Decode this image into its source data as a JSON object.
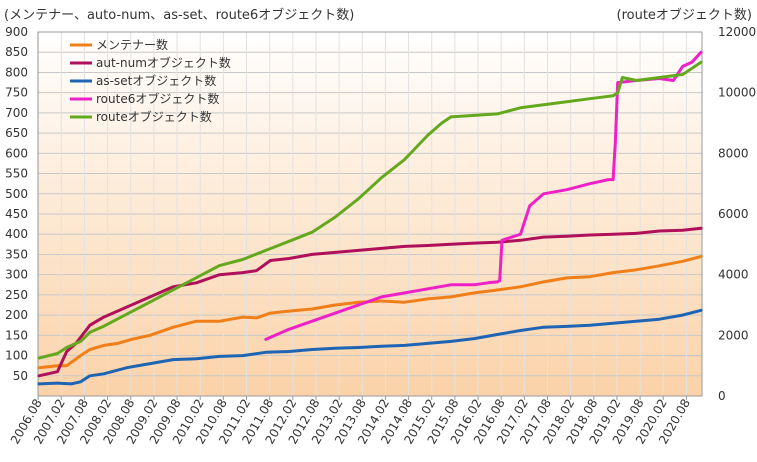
{
  "chart_data": {
    "type": "line",
    "left_axis_title": "(メンテナー、auto-num、as-set、route6オブジェクト数)",
    "right_axis_title": "(routeオブジェクト数)",
    "y_left": {
      "min": 0,
      "max": 900,
      "ticks": [
        50,
        100,
        150,
        200,
        250,
        300,
        350,
        400,
        450,
        500,
        550,
        600,
        650,
        700,
        750,
        800,
        850,
        900
      ]
    },
    "y_right": {
      "min": 0,
      "max": 12000,
      "ticks": [
        0,
        2000,
        4000,
        6000,
        8000,
        10000,
        12000
      ]
    },
    "x_range": [
      2006.58,
      2020.92
    ],
    "x_ticks": [
      "2006.08",
      "2007.02",
      "2007.08",
      "2008.02",
      "2008.08",
      "2009.02",
      "2009.08",
      "2010.02",
      "2010.08",
      "2011.02",
      "2011.08",
      "2012.02",
      "2012.08",
      "2013.02",
      "2013.08",
      "2014.02",
      "2014.08",
      "2015.02",
      "2015.08",
      "2016.02",
      "2016.08",
      "2017.02",
      "2017.08",
      "2018.02",
      "2018.08",
      "2019.02",
      "2019.08",
      "2020.02",
      "2020.08"
    ],
    "grid": true,
    "legend_position": "top-left",
    "series": [
      {
        "name": "メンテナー数",
        "axis": "left",
        "color": "#f07f1a",
        "x": [
          2006.6,
          2007.0,
          2007.2,
          2007.5,
          2007.7,
          2008.0,
          2008.3,
          2008.6,
          2009.0,
          2009.5,
          2010.0,
          2010.5,
          2011.0,
          2011.3,
          2011.6,
          2012.0,
          2012.5,
          2013.0,
          2013.5,
          2014.0,
          2014.5,
          2015.0,
          2015.5,
          2016.0,
          2016.5,
          2017.0,
          2017.5,
          2018.0,
          2018.5,
          2019.0,
          2019.5,
          2020.0,
          2020.5,
          2020.9
        ],
        "y": [
          70,
          75,
          75,
          100,
          115,
          125,
          130,
          140,
          150,
          170,
          185,
          185,
          195,
          193,
          205,
          210,
          215,
          225,
          232,
          235,
          232,
          240,
          245,
          255,
          262,
          270,
          282,
          292,
          295,
          305,
          312,
          322,
          333,
          345
        ]
      },
      {
        "name": "aut-numオブジェクト数",
        "axis": "left",
        "color": "#b0105a",
        "x": [
          2006.6,
          2007.0,
          2007.2,
          2007.4,
          2007.7,
          2008.0,
          2008.5,
          2009.0,
          2009.5,
          2010.0,
          2010.5,
          2011.0,
          2011.3,
          2011.6,
          2012.0,
          2012.5,
          2013.0,
          2013.5,
          2014.0,
          2014.5,
          2015.0,
          2015.5,
          2016.0,
          2016.5,
          2017.0,
          2017.5,
          2018.0,
          2018.5,
          2019.0,
          2019.5,
          2020.0,
          2020.5,
          2020.9
        ],
        "y": [
          50,
          60,
          110,
          130,
          175,
          195,
          220,
          245,
          270,
          280,
          300,
          305,
          310,
          335,
          340,
          350,
          355,
          360,
          365,
          370,
          372,
          375,
          378,
          380,
          385,
          393,
          395,
          398,
          400,
          402,
          408,
          410,
          415
        ]
      },
      {
        "name": "as-setオブジェクト数",
        "axis": "left",
        "color": "#1e64b4",
        "x": [
          2006.6,
          2007.0,
          2007.3,
          2007.5,
          2007.7,
          2008.0,
          2008.5,
          2009.0,
          2009.5,
          2010.0,
          2010.5,
          2011.0,
          2011.5,
          2012.0,
          2012.5,
          2013.0,
          2013.5,
          2014.0,
          2014.5,
          2015.0,
          2015.5,
          2016.0,
          2016.5,
          2017.0,
          2017.5,
          2018.0,
          2018.5,
          2019.0,
          2019.5,
          2020.0,
          2020.5,
          2020.9
        ],
        "y": [
          30,
          32,
          30,
          35,
          50,
          55,
          70,
          80,
          90,
          92,
          98,
          100,
          108,
          110,
          115,
          118,
          120,
          123,
          125,
          130,
          135,
          142,
          152,
          162,
          170,
          172,
          175,
          180,
          185,
          190,
          200,
          212
        ]
      },
      {
        "name": "route6オブジェクト数",
        "axis": "left",
        "color": "#f020c8",
        "x": [
          2011.5,
          2012.0,
          2012.5,
          2013.0,
          2013.5,
          2014.0,
          2014.5,
          2015.0,
          2015.5,
          2016.0,
          2016.3,
          2016.5,
          2016.55,
          2016.6,
          2017.0,
          2017.2,
          2017.5,
          2018.0,
          2018.5,
          2018.9,
          2019.0,
          2019.05,
          2019.1,
          2019.5,
          2020.0,
          2020.3,
          2020.5,
          2020.7,
          2020.9
        ],
        "y": [
          140,
          165,
          185,
          205,
          225,
          245,
          255,
          265,
          275,
          275,
          280,
          282,
          285,
          385,
          400,
          470,
          500,
          510,
          525,
          535,
          535,
          630,
          775,
          780,
          785,
          780,
          815,
          825,
          850
        ]
      },
      {
        "name": "routeオブジェクト数",
        "axis": "right",
        "color": "#64a81e",
        "x": [
          2006.6,
          2007.0,
          2007.2,
          2007.5,
          2007.7,
          2008.0,
          2008.5,
          2009.0,
          2009.5,
          2010.0,
          2010.5,
          2011.0,
          2011.5,
          2012.0,
          2012.5,
          2013.0,
          2013.5,
          2014.0,
          2014.5,
          2015.0,
          2015.3,
          2015.5,
          2016.0,
          2016.5,
          2017.0,
          2017.5,
          2018.0,
          2018.5,
          2019.0,
          2019.1,
          2019.2,
          2019.5,
          2020.0,
          2020.5,
          2020.9
        ],
        "y": [
          1250,
          1400,
          1600,
          1800,
          2100,
          2300,
          2700,
          3100,
          3500,
          3900,
          4300,
          4500,
          4800,
          5100,
          5400,
          5900,
          6500,
          7200,
          7800,
          8600,
          9000,
          9200,
          9250,
          9300,
          9500,
          9600,
          9700,
          9800,
          9900,
          10000,
          10500,
          10400,
          10500,
          10600,
          11000
        ]
      }
    ]
  }
}
